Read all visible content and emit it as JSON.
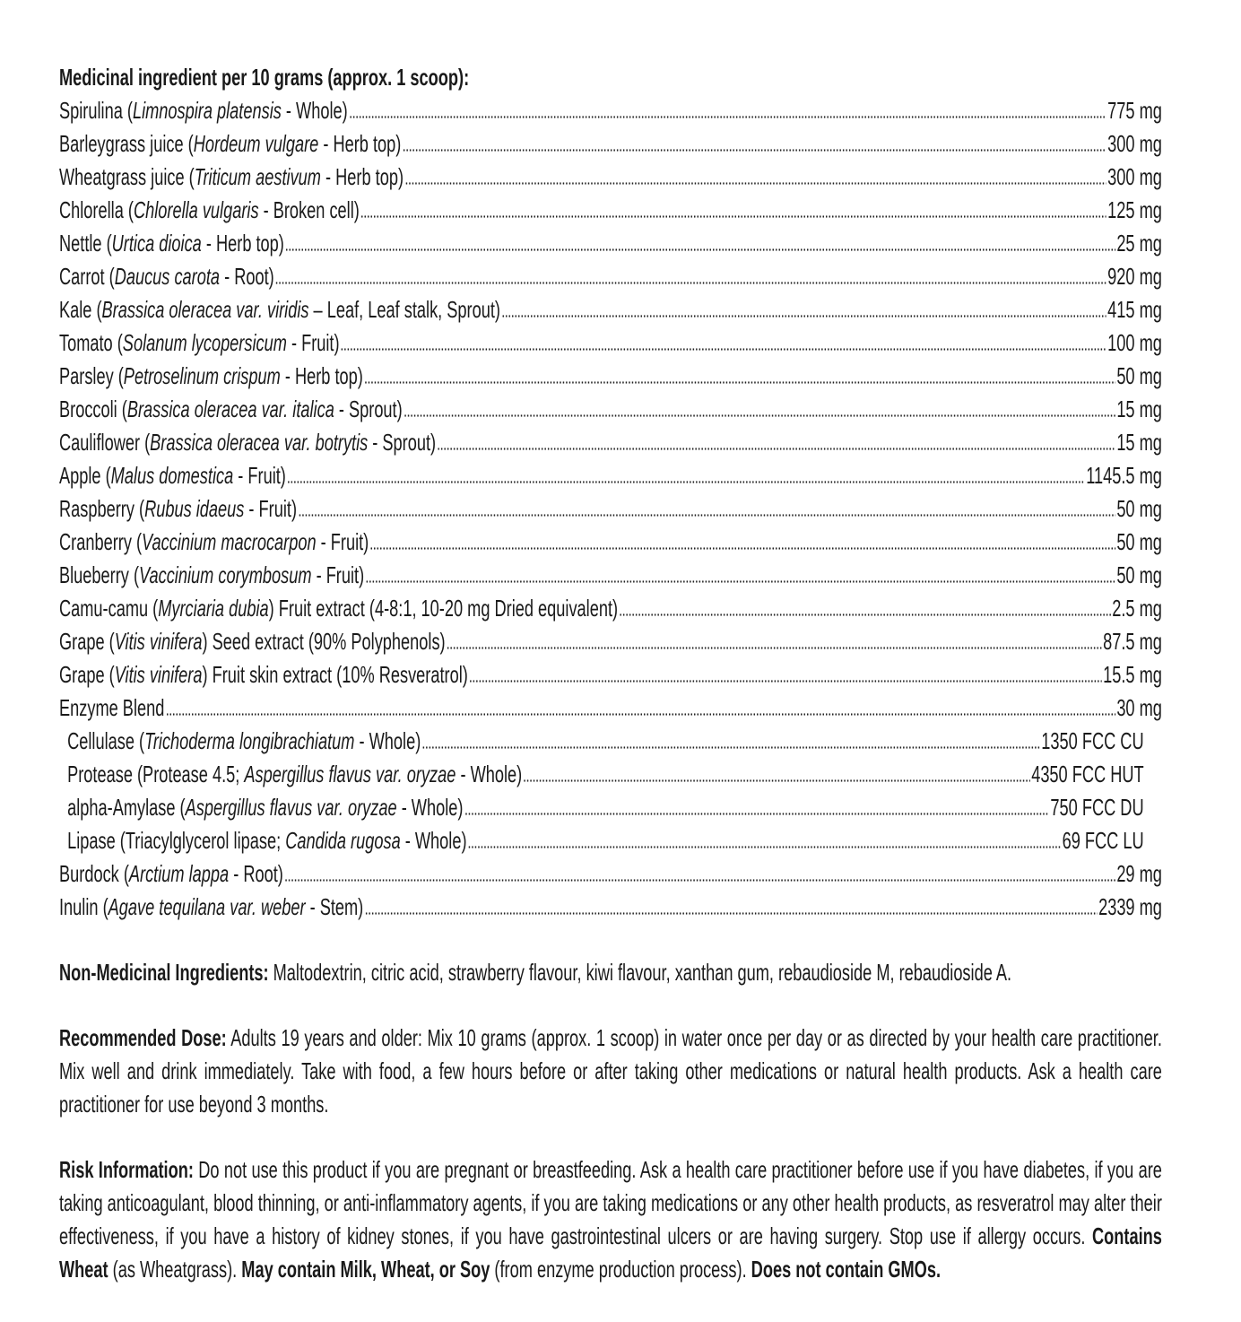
{
  "header": "Medicinal ingredient per 10 grams (approx. 1 scoop):",
  "ingredients": [
    {
      "parts": [
        [
          "Spirulina ("
        ],
        [
          "Limnospira platensis",
          1
        ],
        [
          " - Whole)"
        ]
      ],
      "value": "775 mg"
    },
    {
      "parts": [
        [
          "Barleygrass juice ("
        ],
        [
          "Hordeum vulgare",
          1
        ],
        [
          " - Herb top)"
        ]
      ],
      "value": "300 mg"
    },
    {
      "parts": [
        [
          "Wheatgrass juice ("
        ],
        [
          "Triticum aestivum",
          1
        ],
        [
          " - Herb top)"
        ]
      ],
      "value": "300 mg"
    },
    {
      "parts": [
        [
          "Chlorella ("
        ],
        [
          "Chlorella vulgaris",
          1
        ],
        [
          " - Broken cell)"
        ]
      ],
      "value": "125 mg"
    },
    {
      "parts": [
        [
          "Nettle ("
        ],
        [
          "Urtica dioica",
          1
        ],
        [
          " - Herb top)"
        ]
      ],
      "value": "25 mg"
    },
    {
      "parts": [
        [
          "Carrot ("
        ],
        [
          "Daucus carota",
          1
        ],
        [
          " - Root)"
        ]
      ],
      "value": "920 mg"
    },
    {
      "parts": [
        [
          "Kale ("
        ],
        [
          "Brassica oleracea var. viridis",
          1
        ],
        [
          " – Leaf, Leaf stalk, Sprout)"
        ]
      ],
      "value": "415 mg"
    },
    {
      "parts": [
        [
          "Tomato ("
        ],
        [
          "Solanum lycopersicum",
          1
        ],
        [
          " - Fruit)"
        ]
      ],
      "value": "100 mg"
    },
    {
      "parts": [
        [
          "Parsley ("
        ],
        [
          "Petroselinum crispum",
          1
        ],
        [
          " - Herb top)"
        ]
      ],
      "value": "50 mg"
    },
    {
      "parts": [
        [
          "Broccoli ("
        ],
        [
          "Brassica oleracea var. italica",
          1
        ],
        [
          " - Sprout)"
        ]
      ],
      "value": "15 mg"
    },
    {
      "parts": [
        [
          "Cauliflower ("
        ],
        [
          "Brassica oleracea var. botrytis",
          1
        ],
        [
          " - Sprout)"
        ]
      ],
      "value": "15 mg"
    },
    {
      "parts": [
        [
          "Apple ("
        ],
        [
          "Malus domestica",
          1
        ],
        [
          " - Fruit)"
        ]
      ],
      "value": "1145.5 mg"
    },
    {
      "parts": [
        [
          "Raspberry ("
        ],
        [
          "Rubus idaeus",
          1
        ],
        [
          " - Fruit)"
        ]
      ],
      "value": "50 mg"
    },
    {
      "parts": [
        [
          "Cranberry ("
        ],
        [
          "Vaccinium macrocarpon",
          1
        ],
        [
          " - Fruit)"
        ]
      ],
      "value": "50 mg"
    },
    {
      "parts": [
        [
          "Blueberry ("
        ],
        [
          "Vaccinium corymbosum",
          1
        ],
        [
          " - Fruit)"
        ]
      ],
      "value": "50 mg"
    },
    {
      "parts": [
        [
          "Camu-camu ("
        ],
        [
          "Myrciaria dubia",
          1
        ],
        [
          ") Fruit extract (4-8:1, 10-20 mg Dried equivalent)"
        ]
      ],
      "value": "2.5 mg"
    },
    {
      "parts": [
        [
          "Grape ("
        ],
        [
          "Vitis vinifera",
          1
        ],
        [
          ") Seed extract (90% Polyphenols)"
        ]
      ],
      "value": "87.5 mg"
    },
    {
      "parts": [
        [
          "Grape ("
        ],
        [
          "Vitis vinifera",
          1
        ],
        [
          ") Fruit skin extract (10% Resveratrol)"
        ]
      ],
      "value": "15.5 mg"
    },
    {
      "parts": [
        [
          "Enzyme Blend"
        ]
      ],
      "value": "30 mg"
    },
    {
      "sub": 1,
      "parts": [
        [
          "Cellulase ("
        ],
        [
          "Trichoderma longibrachiatum",
          1
        ],
        [
          " - Whole)"
        ]
      ],
      "value": "1350 FCC CU"
    },
    {
      "sub": 1,
      "parts": [
        [
          "Protease (Protease 4.5; "
        ],
        [
          "Aspergillus flavus var. oryzae",
          1
        ],
        [
          " - Whole)"
        ]
      ],
      "value": "4350 FCC HUT"
    },
    {
      "sub": 1,
      "parts": [
        [
          "alpha-Amylase ("
        ],
        [
          "Aspergillus flavus var. oryzae",
          1
        ],
        [
          " - Whole)"
        ]
      ],
      "value": "750 FCC DU"
    },
    {
      "sub": 1,
      "parts": [
        [
          "Lipase (Triacylglycerol lipase; "
        ],
        [
          "Candida rugosa",
          1
        ],
        [
          " - Whole)"
        ]
      ],
      "value": "69 FCC LU"
    },
    {
      "parts": [
        [
          "Burdock ("
        ],
        [
          "Arctium lappa",
          1
        ],
        [
          " - Root)"
        ]
      ],
      "value": "29 mg"
    },
    {
      "parts": [
        [
          "Inulin ("
        ],
        [
          "Agave tequilana var. weber",
          1
        ],
        [
          " - Stem)"
        ]
      ],
      "value": "2339 mg"
    }
  ],
  "non_medicinal": {
    "label": "Non-Medicinal Ingredients:",
    "text": " Maltodextrin, citric acid, strawberry flavour, kiwi flavour, xanthan gum, rebaudioside M, rebaudioside A."
  },
  "dose": {
    "label": "Recommended Dose:",
    "text": " Adults 19 years and older: Mix 10 grams (approx. 1 scoop) in water once per day or as directed by your health care practitioner.  Mix well and drink immediately. Take with food, a few hours before or after taking other medications or natural health products. Ask a health care practitioner for use beyond 3 months."
  },
  "risk": {
    "label": "Risk Information:",
    "text": " Do not use this product if you are pregnant or breastfeeding. Ask a health care practitioner before use if you have diabetes, if you are taking anticoagulant, blood thinning, or anti-inflammatory agents, if you are taking medications or any other health products, as resveratrol may alter their effectiveness, if you have a history of kidney stones, if you have gastrointestinal ulcers or are having surgery. Stop use if allergy occurs. ",
    "wheat_bold": "Contains Wheat",
    "wheat_text": " (as Wheatgrass). ",
    "may_bold": "May contain Milk, Wheat, or Soy",
    "may_text": " (from enzyme production process). ",
    "gmo_bold": "Does not contain GMOs."
  }
}
